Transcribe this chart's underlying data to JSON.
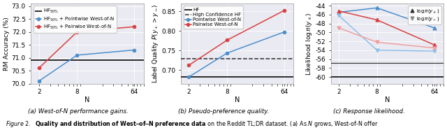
{
  "x": [
    2,
    8,
    64
  ],
  "plot1": {
    "hf_line": 70.9,
    "pointwise": [
      70.1,
      71.1,
      71.3
    ],
    "pairwise": [
      70.6,
      72.0,
      72.2
    ],
    "ylabel": "RM Accuracy (%)",
    "ylim": [
      70.0,
      73.1
    ],
    "yticks": [
      70.0,
      70.5,
      71.0,
      71.5,
      72.0,
      72.5,
      73.0
    ],
    "title": "(a) West-of-N performance gains.",
    "legend": [
      "HF$_{50\\%}$",
      "HF$_{50\\%}$ + Pointwise West-of-N",
      "HF$_{50\\%}$ + Pairwise West-of-N"
    ]
  },
  "plot2": {
    "hf_line": 0.682,
    "hf_conf_line": 0.728,
    "pointwise": [
      0.682,
      0.743,
      0.797
    ],
    "pairwise": [
      0.712,
      0.776,
      0.852
    ],
    "ylabel": "Label Quality $P(y_+ > y_-)$",
    "ylim": [
      0.665,
      0.87
    ],
    "yticks": [
      0.7,
      0.75,
      0.8,
      0.85
    ],
    "title": "(b) Pseudo-preference quality.",
    "legend": [
      "HF",
      "High Confidence HF",
      "Pointwise West-of-N",
      "Pairwise West-of-N"
    ]
  },
  "plot3": {
    "hf_yplus": -60.0,
    "hf_yminus": -56.8,
    "dark_blue": [
      -45.5,
      -44.5,
      -49.0
    ],
    "dark_red": [
      -45.2,
      -47.2,
      -52.8
    ],
    "light_blue": [
      -46.2,
      -54.0,
      -54.2
    ],
    "light_red": [
      -49.0,
      -52.2,
      -53.5
    ],
    "ylabel": "Likelihood $\\log\\pi(y_\\pm)$",
    "ylim": [
      -61.5,
      -43.5
    ],
    "yticks": [
      -60,
      -58,
      -56,
      -54,
      -52,
      -50,
      -48,
      -46,
      -44
    ],
    "title": "(c) Response likelihood.",
    "legend_labels": [
      "$\\log\\pi(y_+)$",
      "$\\log\\pi(y_-)$"
    ]
  },
  "xlabel": "N",
  "hf_color": "#2c2c2c",
  "blue_color": "#4c8fcc",
  "red_color": "#d94040",
  "light_blue_color": "#90c0e8",
  "light_red_color": "#f0a0a0",
  "bg_color": "#eaeaf2"
}
